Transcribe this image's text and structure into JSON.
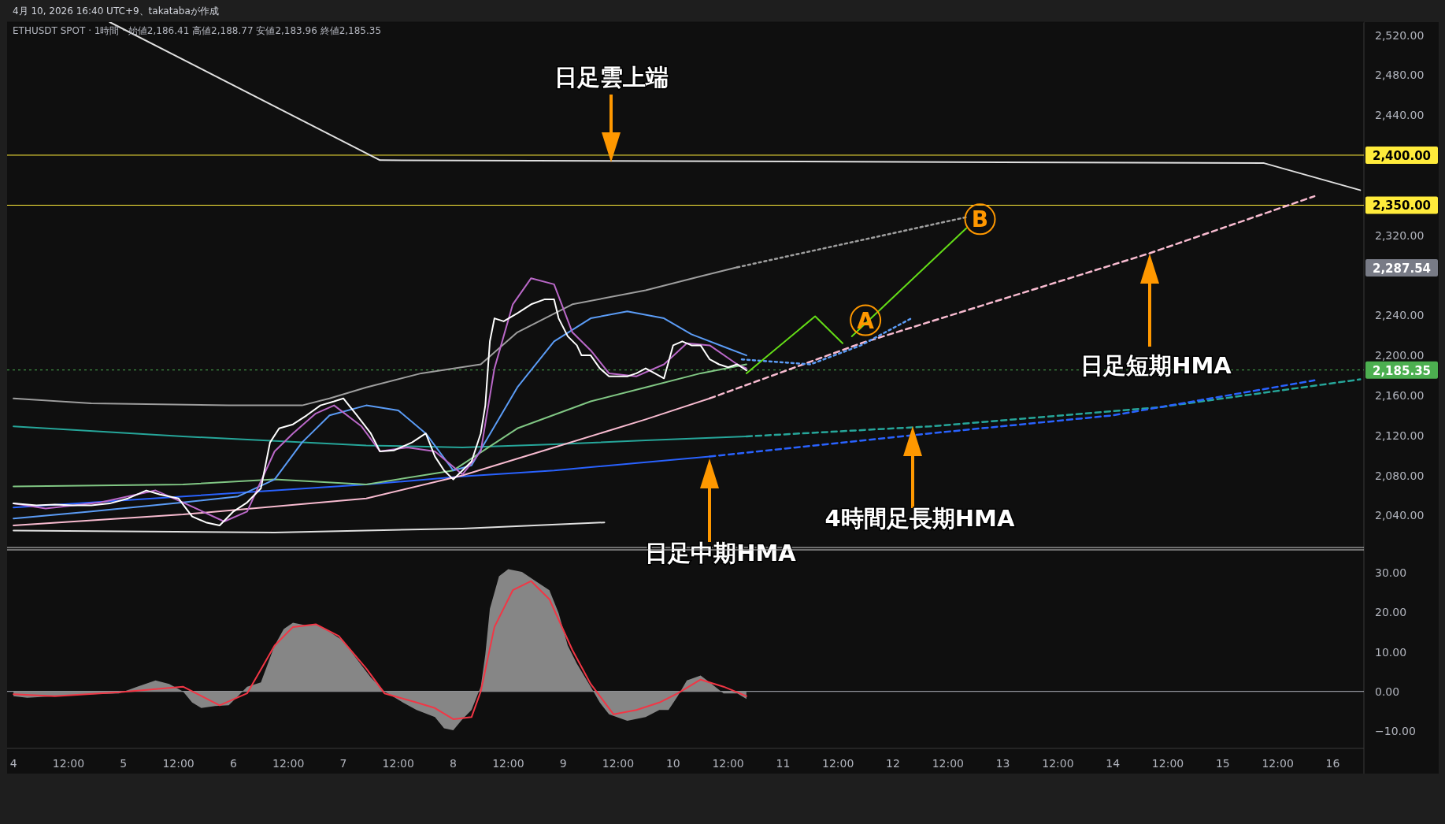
{
  "chart_data": [
    {
      "type": "line",
      "tick_labels": "y",
      "xlim": [
        "2026-04-03T22:36",
        "2026-04-16T06:48"
      ],
      "ylim": [
        2008,
        2533
      ],
      "yticks": [
        {
          "value": 2040,
          "label": "2,040.00"
        },
        {
          "value": 2080,
          "label": "2,080.00"
        },
        {
          "value": 2120,
          "label": "2,120.00"
        },
        {
          "value": 2160,
          "label": "2,160.00"
        },
        {
          "value": 2200,
          "label": "2,200.00"
        },
        {
          "value": 2240,
          "label": "2,240.00"
        },
        {
          "value": 2320,
          "label": "2,320.00"
        },
        {
          "value": 2440,
          "label": "2,440.00"
        },
        {
          "value": 2480,
          "label": "2,480.00"
        },
        {
          "value": 2520,
          "label": "2,520.00"
        }
      ],
      "series": [
        {
          "color": "#e0e0e0",
          "x": [
            "2026-04-04T21:00",
            "2026-04-07T08:00",
            "2026-04-15T09:00",
            "2026-04-16T06:00"
          ],
          "values": [
            2533,
            2395,
            2392,
            2365
          ]
        },
        {
          "color": "#e0e0e0",
          "x": [
            "2026-04-04T00:00",
            "2026-04-06T09:00",
            "2026-04-08T02:00",
            "2026-04-09T09:00"
          ],
          "values": [
            2025,
            2023,
            2027,
            2033
          ]
        },
        {
          "color": "#9e9e9e",
          "x": [
            "2026-04-04T00:00",
            "2026-04-04T17:00",
            "2026-04-05T23:00",
            "2026-04-06T15:00",
            "2026-04-06T21:00",
            "2026-04-07T05:00",
            "2026-04-07T17:00",
            "2026-04-08T06:00",
            "2026-04-08T14:00",
            "2026-04-09T02:00",
            "2026-04-09T18:00",
            "2026-04-10T06:00",
            "2026-04-10T14:00"
          ],
          "values": [
            2157,
            2152,
            2150,
            2150,
            2157,
            2168,
            2182,
            2191,
            2223,
            2251,
            2265,
            2279,
            2288
          ]
        },
        {
          "color": "#9e9e9e",
          "line_style": "dotted",
          "x": [
            "2026-04-10T14:00",
            "2026-04-11T16:00",
            "2026-04-12T16:00"
          ],
          "values": [
            2288,
            2314,
            2338
          ]
        },
        {
          "color": "#26a69a",
          "x": [
            "2026-04-04T00:00",
            "2026-04-05T13:00",
            "2026-04-07T05:00",
            "2026-04-08T02:00",
            "2026-04-08T22:00",
            "2026-04-09T18:00",
            "2026-04-10T16:00"
          ],
          "values": [
            2129,
            2119,
            2110,
            2108,
            2111,
            2115,
            2119
          ]
        },
        {
          "color": "#26a69a",
          "line_style": "dashed",
          "x": [
            "2026-04-10T16:00",
            "2026-04-12T08:00",
            "2026-04-14T10:00",
            "2026-04-16T06:00"
          ],
          "values": [
            2119,
            2129,
            2148,
            2176
          ]
        },
        {
          "color": "#2962ff",
          "x": [
            "2026-04-04T00:00",
            "2026-04-05T13:00",
            "2026-04-07T05:00",
            "2026-04-08T02:00",
            "2026-04-08T22:00",
            "2026-04-10T08:00"
          ],
          "values": [
            2048,
            2059,
            2071,
            2079,
            2085,
            2099
          ]
        },
        {
          "color": "#2962ff",
          "line_style": "dashed",
          "x": [
            "2026-04-10T08:00",
            "2026-04-12T08:00",
            "2026-04-14T00:00",
            "2026-04-15T20:00"
          ],
          "values": [
            2099,
            2122,
            2140,
            2175
          ]
        },
        {
          "color": "#f8bbd0",
          "x": [
            "2026-04-04T00:00",
            "2026-04-05T13:00",
            "2026-04-07T05:00",
            "2026-04-08T02:00",
            "2026-04-08T22:00",
            "2026-04-09T18:00",
            "2026-04-10T08:00"
          ],
          "values": [
            2030,
            2041,
            2057,
            2080,
            2108,
            2136,
            2157
          ]
        },
        {
          "color": "#f8bbd0",
          "line_style": "dashed",
          "x": [
            "2026-04-10T08:00",
            "2026-04-11T17:00",
            "2026-04-14T08:00",
            "2026-04-15T20:00"
          ],
          "values": [
            2157,
            2212,
            2302,
            2359
          ]
        },
        {
          "color": "#81c784",
          "x": [
            "2026-04-04T00:00",
            "2026-04-05T13:00",
            "2026-04-06T09:00",
            "2026-04-07T05:00",
            "2026-04-08T00:00",
            "2026-04-08T14:00",
            "2026-04-09T06:00",
            "2026-04-09T18:00",
            "2026-04-10T06:00",
            "2026-04-10T16:00"
          ],
          "values": [
            2069,
            2071,
            2076,
            2071,
            2085,
            2127,
            2154,
            2168,
            2182,
            2191
          ]
        },
        {
          "color": "#5b9cf6",
          "x": [
            "2026-04-04T00:00",
            "2026-04-04T17:00",
            "2026-04-05T13:00",
            "2026-04-06T01:00",
            "2026-04-06T09:00",
            "2026-04-06T15:00",
            "2026-04-06T21:00",
            "2026-04-07T05:00",
            "2026-04-07T12:00",
            "2026-04-07T18:00",
            "2026-04-08T00:00",
            "2026-04-08T04:00",
            "2026-04-08T14:00",
            "2026-04-08T22:00",
            "2026-04-09T06:00",
            "2026-04-09T14:00",
            "2026-04-09T22:00",
            "2026-04-10T04:00",
            "2026-04-10T12:00",
            "2026-04-10T16:00"
          ],
          "values": [
            2037,
            2044,
            2053,
            2059,
            2076,
            2113,
            2140,
            2150,
            2145,
            2122,
            2085,
            2090,
            2168,
            2214,
            2237,
            2244,
            2237,
            2221,
            2207,
            2200
          ]
        },
        {
          "color": "#5b9cf6",
          "line_style": "dotted",
          "x": [
            "2026-04-10T15:00",
            "2026-04-11T06:00",
            "2026-04-11T17:00",
            "2026-04-12T04:00"
          ],
          "values": [
            2196,
            2191,
            2210,
            2237
          ]
        },
        {
          "color": "#ba68c8",
          "x": [
            "2026-04-04T00:00",
            "2026-04-04T07:00",
            "2026-04-04T19:00",
            "2026-04-05T07:00",
            "2026-04-05T13:00",
            "2026-04-05T22:00",
            "2026-04-06T03:00",
            "2026-04-06T09:00",
            "2026-04-06T13:00",
            "2026-04-06T18:00",
            "2026-04-06T22:00",
            "2026-04-07T04:00",
            "2026-04-07T08:00",
            "2026-04-07T14:00",
            "2026-04-07T20:00",
            "2026-04-08T02:00",
            "2026-04-08T06:00",
            "2026-04-08T09:00",
            "2026-04-08T13:00",
            "2026-04-08T17:00",
            "2026-04-08T22:00",
            "2026-04-09T02:00",
            "2026-04-09T06:00",
            "2026-04-09T10:00",
            "2026-04-09T16:00",
            "2026-04-09T22:00",
            "2026-04-10T03:00",
            "2026-04-10T08:00",
            "2026-04-10T14:00",
            "2026-04-10T16:00"
          ],
          "values": [
            2052,
            2047,
            2053,
            2065,
            2053,
            2034,
            2044,
            2104,
            2122,
            2142,
            2150,
            2129,
            2104,
            2108,
            2104,
            2081,
            2104,
            2187,
            2251,
            2277,
            2271,
            2223,
            2205,
            2182,
            2179,
            2191,
            2212,
            2210,
            2191,
            2187
          ]
        },
        {
          "color": "#ffffff",
          "x": [
            "2026-04-04T00:00",
            "2026-04-04T05:00",
            "2026-04-04T09:00",
            "2026-04-04T13:00",
            "2026-04-04T17:00",
            "2026-04-04T21:00",
            "2026-04-05T01:00",
            "2026-04-05T05:00",
            "2026-04-05T08:00",
            "2026-04-05T12:00",
            "2026-04-05T15:00",
            "2026-04-05T18:00",
            "2026-04-05T21:00",
            "2026-04-06T00:00",
            "2026-04-06T03:00",
            "2026-04-06T06:00",
            "2026-04-06T08:00",
            "2026-04-06T10:00",
            "2026-04-06T13:00",
            "2026-04-06T16:00",
            "2026-04-06T19:00",
            "2026-04-06T22:00",
            "2026-04-07T00:00",
            "2026-04-07T03:00",
            "2026-04-07T06:00",
            "2026-04-07T08:00",
            "2026-04-07T11:00",
            "2026-04-07T15:00",
            "2026-04-07T18:00",
            "2026-04-07T20:00",
            "2026-04-07T22:00",
            "2026-04-08T00:00",
            "2026-04-08T02:00",
            "2026-04-08T04:00",
            "2026-04-08T06:00",
            "2026-04-08T07:00",
            "2026-04-08T08:00",
            "2026-04-08T09:00",
            "2026-04-08T11:00",
            "2026-04-08T14:00",
            "2026-04-08T17:00",
            "2026-04-08T20:00",
            "2026-04-08T22:00",
            "2026-04-08T23:00",
            "2026-04-09T01:00",
            "2026-04-09T03:00",
            "2026-04-09T04:00",
            "2026-04-09T06:00",
            "2026-04-09T08:00",
            "2026-04-09T10:00",
            "2026-04-09T12:00",
            "2026-04-09T14:00",
            "2026-04-09T16:00",
            "2026-04-09T18:00",
            "2026-04-09T20:00",
            "2026-04-09T22:00",
            "2026-04-10T00:00",
            "2026-04-10T02:00",
            "2026-04-10T04:00",
            "2026-04-10T06:00",
            "2026-04-10T08:00",
            "2026-04-10T10:00",
            "2026-04-10T12:00",
            "2026-04-10T14:00",
            "2026-04-10T16:00"
          ],
          "values": [
            2052,
            2050,
            2051,
            2050,
            2050,
            2052,
            2057,
            2065,
            2061,
            2057,
            2039,
            2033,
            2030,
            2044,
            2053,
            2067,
            2113,
            2127,
            2131,
            2140,
            2150,
            2154,
            2157,
            2140,
            2122,
            2104,
            2105,
            2113,
            2122,
            2099,
            2085,
            2076,
            2085,
            2094,
            2122,
            2150,
            2214,
            2237,
            2234,
            2242,
            2251,
            2256,
            2256,
            2237,
            2219,
            2210,
            2200,
            2200,
            2187,
            2179,
            2179,
            2179,
            2182,
            2187,
            2182,
            2177,
            2210,
            2214,
            2210,
            2210,
            2196,
            2191,
            2188,
            2191,
            2185
          ]
        },
        {
          "color": "#64dd17",
          "x": [
            "2026-04-10T16:00",
            "2026-04-11T07:00",
            "2026-04-11T13:00"
          ],
          "values": [
            2182,
            2239,
            2212
          ]
        },
        {
          "color": "#64dd17",
          "x": [
            "2026-04-11T15:00",
            "2026-04-12T16:00"
          ],
          "values": [
            2219,
            2327
          ]
        }
      ],
      "ref_lines": [
        {
          "axis": "y",
          "value": 2400,
          "label": "2,400.00",
          "color": "#ffeb3b"
        },
        {
          "axis": "y",
          "value": 2350,
          "label": "2,350.00",
          "color": "#ffeb3b"
        },
        {
          "axis": "y",
          "value": 2185.35,
          "label": "2,185.35",
          "color": "#4caf50",
          "line_style": "dotted"
        }
      ],
      "annotations": [
        "4月 10, 2026 16:40 UTC+9、takatabaが作成",
        "ETHUSDT SPOT · 1時間 · 始値2,186.41 高値2,188.77 安値2,183.96 終値2,185.35",
        "日足雲上端",
        "日足短期HMA",
        "4時間足長期HMA",
        "日足中期HMA",
        {
          "text": "A",
          "x": "2026-04-11T18:00",
          "y": 2235
        },
        {
          "text": "B",
          "x": "2026-04-12T19:00",
          "y": 2336
        },
        "2,287.54"
      ]
    },
    {
      "type": "area",
      "xlim": [
        "2026-04-03T22:36",
        "2026-04-16T06:48"
      ],
      "ylim": [
        -14.4,
        35.8
      ],
      "xticks": [
        {
          "value": "2026-04-04",
          "label": "4"
        },
        {
          "value": "2026-04-04T12:00",
          "label": "12:00"
        },
        {
          "value": "2026-04-05",
          "label": "5"
        },
        {
          "value": "2026-04-05T12:00",
          "label": "12:00"
        },
        {
          "value": "2026-04-06",
          "label": "6"
        },
        {
          "value": "2026-04-06T12:00",
          "label": "12:00"
        },
        {
          "value": "2026-04-07",
          "label": "7"
        },
        {
          "value": "2026-04-07T12:00",
          "label": "12:00"
        },
        {
          "value": "2026-04-08",
          "label": "8"
        },
        {
          "value": "2026-04-08T12:00",
          "label": "12:00"
        },
        {
          "value": "2026-04-09",
          "label": "9"
        },
        {
          "value": "2026-04-09T12:00",
          "label": "12:00"
        },
        {
          "value": "2026-04-10",
          "label": "10"
        },
        {
          "value": "2026-04-10T12:00",
          "label": "12:00"
        },
        {
          "value": "2026-04-11",
          "label": "11"
        },
        {
          "value": "2026-04-11T12:00",
          "label": "12:00"
        },
        {
          "value": "2026-04-12",
          "label": "12"
        },
        {
          "value": "2026-04-12T12:00",
          "label": "12:00"
        },
        {
          "value": "2026-04-13",
          "label": "13"
        },
        {
          "value": "2026-04-13T12:00",
          "label": "12:00"
        },
        {
          "value": "2026-04-14",
          "label": "14"
        },
        {
          "value": "2026-04-14T12:00",
          "label": "12:00"
        },
        {
          "value": "2026-04-15",
          "label": "15"
        },
        {
          "value": "2026-04-15T12:00",
          "label": "12:00"
        },
        {
          "value": "2026-04-16",
          "label": "16"
        }
      ],
      "yticks": [
        {
          "value": -10,
          "label": "−10.00"
        },
        {
          "value": 0,
          "label": "0.00"
        },
        {
          "value": 10,
          "label": "10.00"
        },
        {
          "value": 20,
          "label": "20.00"
        },
        {
          "value": 30,
          "label": "30.00"
        }
      ],
      "series": [
        {
          "color": "#868686",
          "x": [
            "2026-04-04T00:00",
            "2026-04-04T03:00",
            "2026-04-04T09:00",
            "2026-04-04T17:00",
            "2026-04-04T23:00",
            "2026-04-05T03:00",
            "2026-04-05T07:00",
            "2026-04-05T10:00",
            "2026-04-05T13:00",
            "2026-04-05T15:00",
            "2026-04-05T17:00",
            "2026-04-05T20:00",
            "2026-04-05T23:00",
            "2026-04-06T01:00",
            "2026-04-06T03:00",
            "2026-04-06T06:00",
            "2026-04-06T09:00",
            "2026-04-06T11:00",
            "2026-04-06T13:00",
            "2026-04-06T16:00",
            "2026-04-06T18:00",
            "2026-04-06T21:00",
            "2026-04-07T00:00",
            "2026-04-07T03:00",
            "2026-04-07T06:00",
            "2026-04-07T09:00",
            "2026-04-07T13:00",
            "2026-04-07T16:00",
            "2026-04-07T20:00",
            "2026-04-07T22:00",
            "2026-04-08T00:00",
            "2026-04-08T02:00",
            "2026-04-08T04:00",
            "2026-04-08T06:00",
            "2026-04-08T07:00",
            "2026-04-08T08:00",
            "2026-04-08T10:00",
            "2026-04-08T12:00",
            "2026-04-08T15:00",
            "2026-04-08T18:00",
            "2026-04-08T21:00",
            "2026-04-08T23:00",
            "2026-04-09T01:00",
            "2026-04-09T03:00",
            "2026-04-09T06:00",
            "2026-04-09T08:00",
            "2026-04-09T10:00",
            "2026-04-09T14:00",
            "2026-04-09T18:00",
            "2026-04-09T21:00",
            "2026-04-09T23:00",
            "2026-04-10T01:00",
            "2026-04-10T03:00",
            "2026-04-10T06:00",
            "2026-04-10T08:00",
            "2026-04-10T11:00",
            "2026-04-10T14:00",
            "2026-04-10T16:00"
          ],
          "values": [
            -1.2,
            -1.6,
            -1.2,
            -0.7,
            -0.5,
            1.2,
            2.8,
            1.9,
            0,
            -2.8,
            -4.2,
            -3.7,
            -3.5,
            -1.2,
            1.2,
            2.3,
            11.6,
            15.8,
            17.4,
            16.7,
            17.0,
            15.1,
            12.8,
            8.1,
            3.5,
            0,
            -2.8,
            -4.7,
            -6.5,
            -9.3,
            -9.8,
            -7.0,
            -4.7,
            1.2,
            9.3,
            20.9,
            29.1,
            30.9,
            30.2,
            27.9,
            25.6,
            19.8,
            11.6,
            7.0,
            1.2,
            -2.8,
            -5.8,
            -7.4,
            -6.5,
            -4.7,
            -4.7,
            -1.2,
            2.8,
            4.0,
            2.3,
            -0.5,
            -0.5,
            -1.9
          ]
        },
        {
          "type": "line",
          "color": "#f23645",
          "x": [
            "2026-04-04T00:00",
            "2026-04-04T09:00",
            "2026-04-04T23:00",
            "2026-04-05T13:00",
            "2026-04-05T21:00",
            "2026-04-06T03:00",
            "2026-04-06T09:00",
            "2026-04-06T13:00",
            "2026-04-06T18:00",
            "2026-04-06T23:00",
            "2026-04-07T05:00",
            "2026-04-07T09:00",
            "2026-04-07T16:00",
            "2026-04-07T20:00",
            "2026-04-08T00:00",
            "2026-04-08T04:00",
            "2026-04-08T06:00",
            "2026-04-08T09:00",
            "2026-04-08T13:00",
            "2026-04-08T17:00",
            "2026-04-08T21:00",
            "2026-04-09T02:00",
            "2026-04-09T06:00",
            "2026-04-09T11:00",
            "2026-04-09T16:00",
            "2026-04-09T21:00",
            "2026-04-10T01:00",
            "2026-04-10T06:00",
            "2026-04-10T11:00",
            "2026-04-10T16:00"
          ],
          "values": [
            -0.7,
            -1.2,
            -0.2,
            1.2,
            -3.5,
            -0.5,
            11.6,
            16.3,
            17.0,
            14.0,
            5.8,
            -0.5,
            -2.8,
            -4.2,
            -7.0,
            -6.5,
            0,
            16.3,
            25.6,
            27.9,
            23.3,
            10.5,
            1.9,
            -5.8,
            -4.7,
            -2.8,
            -0.5,
            3.0,
            1.2,
            -1.2
          ]
        }
      ],
      "ref_lines": [
        {
          "axis": "y",
          "value": 0,
          "color": "#b2b5be"
        }
      ]
    }
  ]
}
